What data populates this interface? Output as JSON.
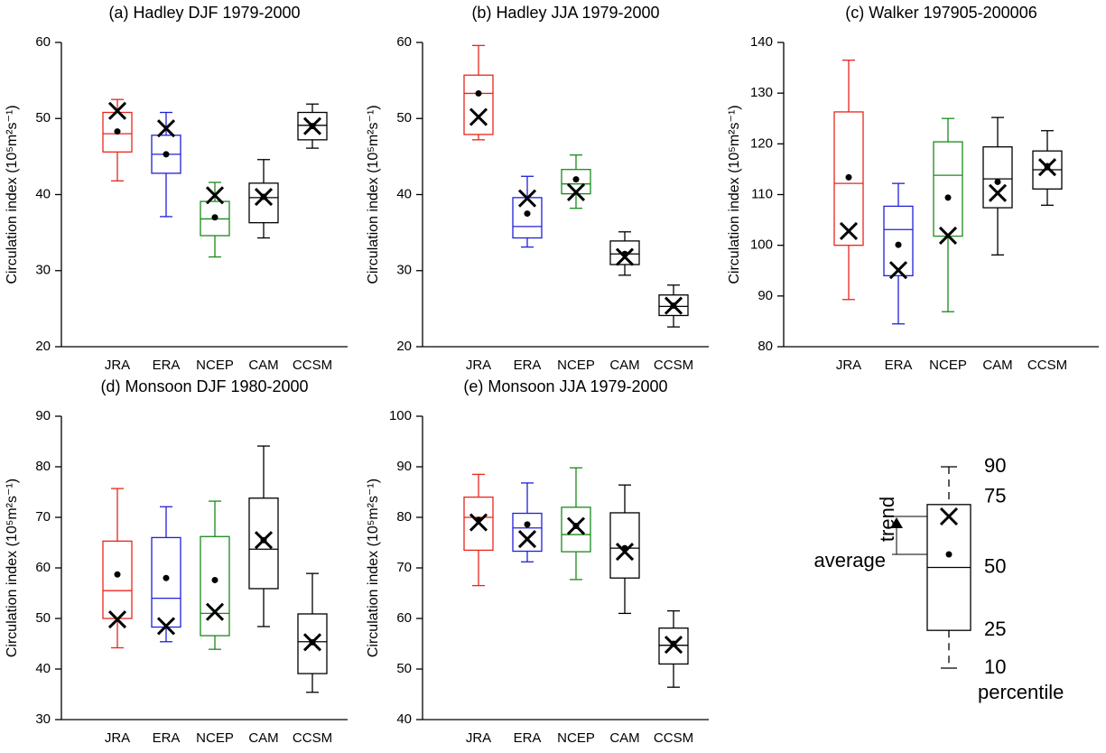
{
  "chart_data": [
    {
      "type": "box",
      "title": "(a) Hadley DJF 1979-2000",
      "y_label": "Circulation index (10⁵m²s⁻¹)",
      "categories": [
        "JRA",
        "ERA",
        "NCEP",
        "CAM",
        "CCSM"
      ],
      "colors": [
        "#e8251c",
        "#2020d8",
        "#1a8a1a",
        "#000000",
        "#000000"
      ],
      "p10": [
        41.8,
        37.1,
        31.8,
        34.3,
        46.1
      ],
      "p25": [
        45.6,
        42.8,
        34.6,
        36.3,
        47.2
      ],
      "median": [
        48.0,
        45.3,
        36.8,
        39.6,
        49.1
      ],
      "p75": [
        50.8,
        47.8,
        39.1,
        41.5,
        50.8
      ],
      "p90": [
        52.5,
        50.8,
        41.6,
        44.6,
        51.9
      ],
      "average": [
        48.3,
        45.3,
        37.0,
        39.7,
        49.0
      ],
      "trend": [
        51.0,
        48.7,
        39.9,
        39.7,
        49.0
      ],
      "ylim": [
        20,
        60
      ],
      "yticks": [
        20,
        30,
        40,
        50,
        60
      ]
    },
    {
      "type": "box",
      "title": "(b) Hadley JJA 1979-2000",
      "y_label": "Circulation index (10⁵m²s⁻¹)",
      "categories": [
        "JRA",
        "ERA",
        "NCEP",
        "CAM",
        "CCSM"
      ],
      "colors": [
        "#e8251c",
        "#2020d8",
        "#1a8a1a",
        "#000000",
        "#000000"
      ],
      "p10": [
        47.2,
        33.1,
        38.2,
        29.4,
        22.6
      ],
      "p25": [
        47.9,
        34.3,
        40.1,
        30.8,
        24.1
      ],
      "median": [
        53.3,
        35.8,
        41.4,
        32.2,
        25.3
      ],
      "p75": [
        55.7,
        39.6,
        43.3,
        33.9,
        26.8
      ],
      "p90": [
        59.6,
        42.4,
        45.2,
        35.1,
        28.1
      ],
      "average": [
        53.3,
        37.5,
        42.0,
        32.2,
        25.4
      ],
      "trend": [
        50.2,
        39.5,
        40.3,
        31.8,
        25.4
      ],
      "ylim": [
        20,
        60
      ],
      "yticks": [
        20,
        30,
        40,
        50,
        60
      ]
    },
    {
      "type": "box",
      "title": "(c) Walker 197905-200006",
      "y_label": "Circulation index (10⁵m²s⁻¹)",
      "categories": [
        "JRA",
        "ERA",
        "NCEP",
        "CAM",
        "CCSM"
      ],
      "colors": [
        "#e8251c",
        "#2020d8",
        "#1a8a1a",
        "#000000",
        "#000000"
      ],
      "p10": [
        89.3,
        84.5,
        86.9,
        98.1,
        107.9
      ],
      "p25": [
        100.0,
        94.0,
        101.8,
        107.4,
        111.1
      ],
      "median": [
        112.2,
        103.1,
        113.8,
        113.1,
        114.9
      ],
      "p75": [
        126.3,
        107.7,
        120.4,
        119.4,
        118.6
      ],
      "p90": [
        136.5,
        112.2,
        125.0,
        125.2,
        122.6
      ],
      "average": [
        113.4,
        100.1,
        109.4,
        112.5,
        115.6
      ],
      "trend": [
        102.8,
        95.1,
        101.9,
        110.3,
        115.4
      ],
      "ylim": [
        80,
        140
      ],
      "yticks": [
        80,
        90,
        100,
        110,
        120,
        130,
        140
      ]
    },
    {
      "type": "box",
      "title": "(d) Monsoon DJF 1980-2000",
      "y_label": "Circulation index (10⁵m²s⁻¹)",
      "categories": [
        "JRA",
        "ERA",
        "NCEP",
        "CAM",
        "CCSM"
      ],
      "colors": [
        "#e8251c",
        "#2020d8",
        "#1a8a1a",
        "#000000",
        "#000000"
      ],
      "p10": [
        44.2,
        45.4,
        43.9,
        48.4,
        35.4
      ],
      "p25": [
        50.0,
        48.3,
        46.6,
        55.9,
        39.1
      ],
      "median": [
        55.5,
        54.0,
        51.0,
        63.7,
        45.4
      ],
      "p75": [
        65.3,
        66.0,
        66.2,
        73.8,
        50.9
      ],
      "p90": [
        75.7,
        72.1,
        73.2,
        84.1,
        58.9
      ],
      "average": [
        58.7,
        58.0,
        57.6,
        65.5,
        45.3
      ],
      "trend": [
        49.8,
        48.5,
        51.3,
        65.5,
        45.3
      ],
      "ylim": [
        30,
        90
      ],
      "yticks": [
        30,
        40,
        50,
        60,
        70,
        80,
        90
      ]
    },
    {
      "type": "box",
      "title": "(e) Monsoon JJA 1979-2000",
      "y_label": "Circulation index (10⁵m²s⁻¹)",
      "categories": [
        "JRA",
        "ERA",
        "NCEP",
        "CAM",
        "CCSM"
      ],
      "colors": [
        "#e8251c",
        "#2020d8",
        "#1a8a1a",
        "#000000",
        "#000000"
      ],
      "p10": [
        66.5,
        71.2,
        67.7,
        61.0,
        46.4
      ],
      "p25": [
        73.5,
        73.3,
        73.2,
        68.0,
        51.0
      ],
      "median": [
        80.0,
        77.9,
        76.6,
        73.9,
        54.7
      ],
      "p75": [
        84.0,
        80.8,
        82.0,
        80.9,
        58.1
      ],
      "p90": [
        88.5,
        86.8,
        89.8,
        86.4,
        61.5
      ],
      "average": [
        79.5,
        78.6,
        78.3,
        73.9,
        55.0
      ],
      "trend": [
        79.0,
        75.7,
        78.3,
        73.2,
        54.8
      ],
      "ylim": [
        40,
        100
      ],
      "yticks": [
        40,
        50,
        60,
        70,
        80,
        90,
        100
      ]
    }
  ],
  "key": {
    "percentiles": [
      90,
      75,
      50,
      25,
      10
    ],
    "percentile_label": "percentile",
    "trend_label": "trend",
    "average_label": "average"
  }
}
